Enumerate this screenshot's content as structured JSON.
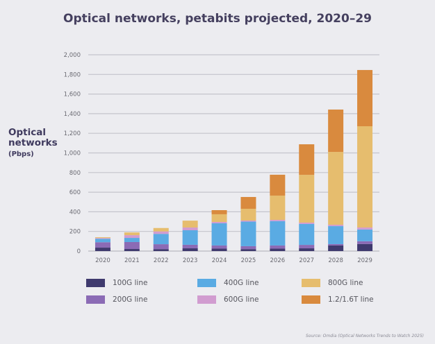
{
  "chart_data": {
    "type": "bar",
    "stacked": true,
    "title": "Optical networks, petabits projected, 2020–29",
    "ylabel": "Optical networks",
    "ylabel_unit": "(Pbps)",
    "xlabel": "",
    "ylim": [
      0,
      2000
    ],
    "yticks": [
      0,
      200,
      400,
      600,
      800,
      1000,
      1200,
      1400,
      1600,
      1800,
      2000
    ],
    "ytick_labels": [
      "0",
      "200",
      "400",
      "600",
      "800",
      "1,000",
      "1,200",
      "1,400",
      "1,600",
      "1,800",
      "2,000"
    ],
    "grid": true,
    "categories": [
      "2020",
      "2021",
      "2022",
      "2023",
      "2024",
      "2025",
      "2026",
      "2027",
      "2028",
      "2029"
    ],
    "series": [
      {
        "name": "100G line",
        "color": "#3f3a6e",
        "values": [
          35,
          21,
          20,
          28,
          25,
          20,
          25,
          28,
          57,
          72
        ]
      },
      {
        "name": "200G line",
        "color": "#8b6bb5",
        "values": [
          55,
          71,
          50,
          36,
          32,
          30,
          32,
          35,
          14,
          28
        ]
      },
      {
        "name": "400G line",
        "color": "#5aabe3",
        "values": [
          35,
          42,
          105,
          148,
          226,
          250,
          248,
          213,
          183,
          120
        ]
      },
      {
        "name": "600G line",
        "color": "#d19cd0",
        "values": [
          8,
          28,
          25,
          28,
          14,
          11,
          13,
          14,
          14,
          20
        ]
      },
      {
        "name": "800G line",
        "color": "#e6bd6e",
        "values": [
          8,
          28,
          35,
          70,
          78,
          120,
          247,
          487,
          742,
          1032
        ]
      },
      {
        "name": "1.2/1.6T line",
        "color": "#d98a3e",
        "values": [
          0,
          0,
          0,
          0,
          42,
          120,
          213,
          311,
          432,
          573
        ]
      }
    ],
    "legend_position": "bottom",
    "source": "Source: Omdia (Optical Networks Trends to Watch 2025)"
  }
}
